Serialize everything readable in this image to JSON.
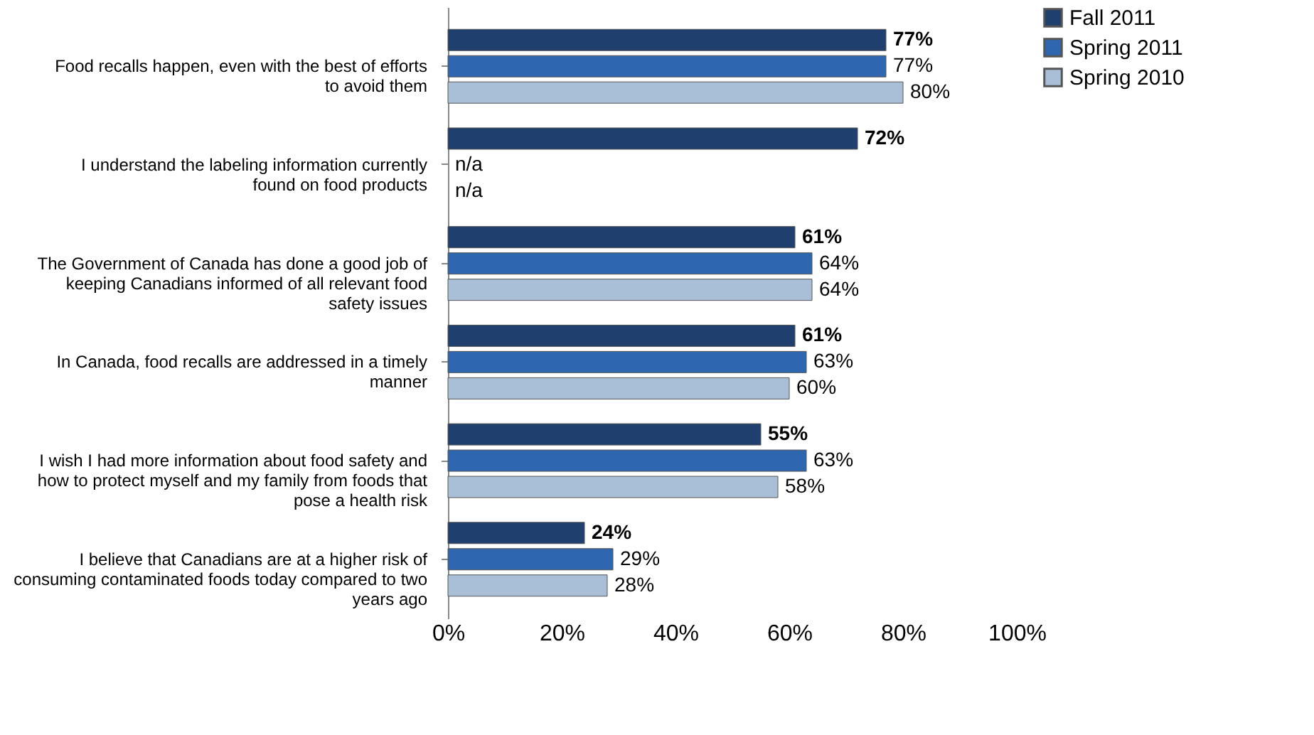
{
  "chart_data": {
    "type": "bar",
    "orientation": "horizontal",
    "categories": [
      "Food recalls happen, even with the best of efforts to avoid them",
      "I understand the labeling information currently found on food products",
      "The Government of Canada has done a good job of keeping Canadians informed of all relevant food safety issues",
      "In Canada, food recalls are addressed in a timely manner",
      "I wish I had more information about food safety and how to protect myself and my family from foods that pose a health risk",
      "I believe that Canadians are at a higher risk of consuming contaminated foods today  compared to two years ago"
    ],
    "series": [
      {
        "name": "Fall 2011",
        "color": "#1f3f6e",
        "values": [
          77,
          72,
          61,
          61,
          55,
          24
        ],
        "value_labels": [
          "77%",
          "72%",
          "61%",
          "61%",
          "55%",
          "24%"
        ]
      },
      {
        "name": "Spring 2011",
        "color": "#2f66b0",
        "values": [
          77,
          null,
          64,
          63,
          63,
          29
        ],
        "value_labels": [
          "77%",
          "n/a",
          "64%",
          "63%",
          "63%",
          "29%"
        ]
      },
      {
        "name": "Spring 2010",
        "color": "#a9bfd8",
        "values": [
          80,
          null,
          64,
          60,
          58,
          28
        ],
        "value_labels": [
          "80%",
          "n/a",
          "64%",
          "60%",
          "58%",
          "28%"
        ]
      }
    ],
    "xlim": [
      0,
      100
    ],
    "xticks": [
      {
        "value": 0,
        "label": "0%"
      },
      {
        "value": 20,
        "label": "20%"
      },
      {
        "value": 40,
        "label": "40%"
      },
      {
        "value": 60,
        "label": "60%"
      },
      {
        "value": 80,
        "label": "80%"
      },
      {
        "value": 100,
        "label": "100%"
      }
    ],
    "grid": false,
    "legend": "right"
  }
}
